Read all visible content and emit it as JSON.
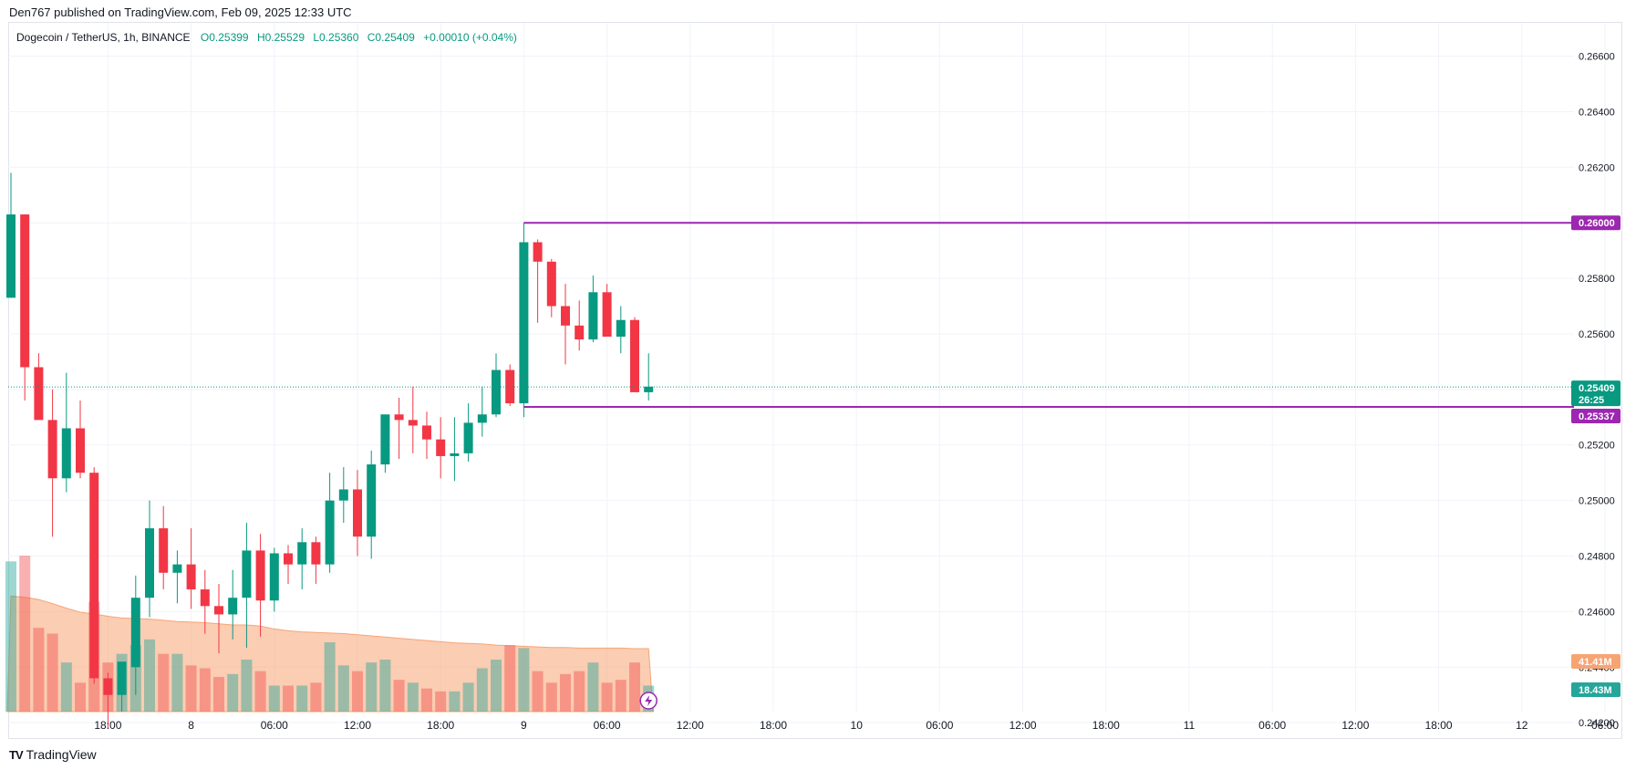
{
  "header": {
    "published": "Den767 published on TradingView.com, Feb 09, 2025 12:33 UTC"
  },
  "legend": {
    "symbol": "Dogecoin / TetherUS, 1h, BINANCE",
    "open": "O0.25399",
    "high": "H0.25529",
    "low": "L0.25360",
    "close": "C0.25409",
    "change": "+0.00010 (+0.04%)"
  },
  "footer": {
    "brand": "TradingView",
    "logo": "TV"
  },
  "colors": {
    "up": "#089981",
    "down": "#f23645",
    "level": "#9c27b0",
    "vol_ma": "#f7a475",
    "grid": "#f0f3fa",
    "axis_text": "#131722"
  },
  "chart_data": {
    "type": "candlestick",
    "title": "Dogecoin / TetherUS, 1h, BINANCE",
    "ylim": [
      0.2424,
      0.2672
    ],
    "y_ticks": [
      0.266,
      0.264,
      0.262,
      0.26,
      0.258,
      0.256,
      0.254,
      0.252,
      0.25,
      0.248,
      0.246,
      0.244,
      0.242
    ],
    "y_tick_labels": [
      "0.26600",
      "0.26400",
      "0.26200",
      "0.26000",
      "0.25800",
      "0.25600",
      "0.25400",
      "0.25200",
      "0.25000",
      "0.24800",
      "0.24600",
      "0.24400",
      "0.24200"
    ],
    "x_labels": [
      {
        "hour": 7,
        "label": "18:00"
      },
      {
        "hour": 13,
        "label": "8"
      },
      {
        "hour": 19,
        "label": "06:00"
      },
      {
        "hour": 25,
        "label": "12:00"
      },
      {
        "hour": 31,
        "label": "18:00"
      },
      {
        "hour": 37,
        "label": "9"
      },
      {
        "hour": 43,
        "label": "06:00"
      },
      {
        "hour": 49,
        "label": "12:00"
      },
      {
        "hour": 55,
        "label": "18:00"
      },
      {
        "hour": 61,
        "label": "10"
      },
      {
        "hour": 67,
        "label": "06:00"
      },
      {
        "hour": 73,
        "label": "12:00"
      },
      {
        "hour": 79,
        "label": "18:00"
      },
      {
        "hour": 85,
        "label": "11"
      },
      {
        "hour": 91,
        "label": "06:00"
      },
      {
        "hour": 97,
        "label": "12:00"
      },
      {
        "hour": 103,
        "label": "18:00"
      },
      {
        "hour": 109,
        "label": "12"
      },
      {
        "hour": 115,
        "label": "06:00"
      }
    ],
    "candles": [
      {
        "o": 0.2573,
        "h": 0.2618,
        "l": 0.2573,
        "c": 0.2603
      },
      {
        "o": 0.2603,
        "h": 0.2603,
        "l": 0.2536,
        "c": 0.2548
      },
      {
        "o": 0.2548,
        "h": 0.2553,
        "l": 0.2529,
        "c": 0.2529
      },
      {
        "o": 0.2529,
        "h": 0.254,
        "l": 0.2487,
        "c": 0.2508
      },
      {
        "o": 0.2508,
        "h": 0.2546,
        "l": 0.2503,
        "c": 0.2526
      },
      {
        "o": 0.2526,
        "h": 0.2536,
        "l": 0.2508,
        "c": 0.251
      },
      {
        "o": 0.251,
        "h": 0.2512,
        "l": 0.2434,
        "c": 0.2436
      },
      {
        "o": 0.2436,
        "h": 0.2438,
        "l": 0.2418,
        "c": 0.243
      },
      {
        "o": 0.243,
        "h": 0.244,
        "l": 0.2424,
        "c": 0.2442
      },
      {
        "o": 0.244,
        "h": 0.2473,
        "l": 0.243,
        "c": 0.2465
      },
      {
        "o": 0.2465,
        "h": 0.25,
        "l": 0.2458,
        "c": 0.249
      },
      {
        "o": 0.249,
        "h": 0.2498,
        "l": 0.2468,
        "c": 0.2474
      },
      {
        "o": 0.2474,
        "h": 0.2482,
        "l": 0.2463,
        "c": 0.2477
      },
      {
        "o": 0.2477,
        "h": 0.249,
        "l": 0.2461,
        "c": 0.2468
      },
      {
        "o": 0.2468,
        "h": 0.2475,
        "l": 0.2452,
        "c": 0.2462
      },
      {
        "o": 0.2462,
        "h": 0.247,
        "l": 0.2445,
        "c": 0.2459
      },
      {
        "o": 0.2459,
        "h": 0.2475,
        "l": 0.245,
        "c": 0.2465
      },
      {
        "o": 0.2465,
        "h": 0.2492,
        "l": 0.2447,
        "c": 0.2482
      },
      {
        "o": 0.2482,
        "h": 0.2488,
        "l": 0.2451,
        "c": 0.2464
      },
      {
        "o": 0.2464,
        "h": 0.2483,
        "l": 0.246,
        "c": 0.2481
      },
      {
        "o": 0.2481,
        "h": 0.2484,
        "l": 0.247,
        "c": 0.2477
      },
      {
        "o": 0.2477,
        "h": 0.249,
        "l": 0.2468,
        "c": 0.2485
      },
      {
        "o": 0.2485,
        "h": 0.2487,
        "l": 0.247,
        "c": 0.2477
      },
      {
        "o": 0.2477,
        "h": 0.251,
        "l": 0.2474,
        "c": 0.25
      },
      {
        "o": 0.25,
        "h": 0.2512,
        "l": 0.2492,
        "c": 0.2504
      },
      {
        "o": 0.2504,
        "h": 0.2511,
        "l": 0.248,
        "c": 0.2487
      },
      {
        "o": 0.2487,
        "h": 0.2518,
        "l": 0.2479,
        "c": 0.2513
      },
      {
        "o": 0.2513,
        "h": 0.253,
        "l": 0.251,
        "c": 0.2531
      },
      {
        "o": 0.2531,
        "h": 0.2537,
        "l": 0.2515,
        "c": 0.2529
      },
      {
        "o": 0.2529,
        "h": 0.2541,
        "l": 0.2517,
        "c": 0.2527
      },
      {
        "o": 0.2527,
        "h": 0.2532,
        "l": 0.2515,
        "c": 0.2522
      },
      {
        "o": 0.2522,
        "h": 0.253,
        "l": 0.2508,
        "c": 0.2516
      },
      {
        "o": 0.2516,
        "h": 0.253,
        "l": 0.2507,
        "c": 0.2517
      },
      {
        "o": 0.2517,
        "h": 0.2535,
        "l": 0.2514,
        "c": 0.2528
      },
      {
        "o": 0.2528,
        "h": 0.2541,
        "l": 0.2523,
        "c": 0.2531
      },
      {
        "o": 0.2531,
        "h": 0.2553,
        "l": 0.253,
        "c": 0.2547
      },
      {
        "o": 0.2547,
        "h": 0.2549,
        "l": 0.2534,
        "c": 0.2535
      },
      {
        "o": 0.2535,
        "h": 0.26,
        "l": 0.253,
        "c": 0.2593
      },
      {
        "o": 0.2593,
        "h": 0.2594,
        "l": 0.2564,
        "c": 0.2586
      },
      {
        "o": 0.2586,
        "h": 0.2587,
        "l": 0.2566,
        "c": 0.257
      },
      {
        "o": 0.257,
        "h": 0.2578,
        "l": 0.2549,
        "c": 0.2563
      },
      {
        "o": 0.2563,
        "h": 0.2572,
        "l": 0.2554,
        "c": 0.2558
      },
      {
        "o": 0.2558,
        "h": 0.2581,
        "l": 0.2557,
        "c": 0.2575
      },
      {
        "o": 0.2575,
        "h": 0.2578,
        "l": 0.2559,
        "c": 0.2559
      },
      {
        "o": 0.2559,
        "h": 0.257,
        "l": 0.2553,
        "c": 0.2565
      },
      {
        "o": 0.2565,
        "h": 0.2566,
        "l": 0.2539,
        "c": 0.2539
      },
      {
        "o": 0.2539,
        "h": 0.2553,
        "l": 0.2536,
        "c": 0.2541
      }
    ],
    "volume_scale_max": 30,
    "volumes": [
      {
        "v": 26,
        "up": true
      },
      {
        "v": 27,
        "up": false
      },
      {
        "v": 14.5,
        "up": false
      },
      {
        "v": 13.5,
        "up": false
      },
      {
        "v": 8.5,
        "up": true
      },
      {
        "v": 5,
        "up": false
      },
      {
        "v": 19,
        "up": false
      },
      {
        "v": 8.5,
        "up": false
      },
      {
        "v": 10,
        "up": true
      },
      {
        "v": 11.5,
        "up": true
      },
      {
        "v": 12.5,
        "up": true
      },
      {
        "v": 10,
        "up": false
      },
      {
        "v": 10,
        "up": true
      },
      {
        "v": 8,
        "up": false
      },
      {
        "v": 7.5,
        "up": false
      },
      {
        "v": 6,
        "up": false
      },
      {
        "v": 6.5,
        "up": true
      },
      {
        "v": 9,
        "up": true
      },
      {
        "v": 7,
        "up": false
      },
      {
        "v": 4.5,
        "up": true
      },
      {
        "v": 4.5,
        "up": false
      },
      {
        "v": 4.5,
        "up": true
      },
      {
        "v": 5,
        "up": false
      },
      {
        "v": 12,
        "up": true
      },
      {
        "v": 8,
        "up": true
      },
      {
        "v": 7,
        "up": false
      },
      {
        "v": 8.5,
        "up": true
      },
      {
        "v": 9,
        "up": true
      },
      {
        "v": 5.5,
        "up": false
      },
      {
        "v": 5,
        "up": true
      },
      {
        "v": 4,
        "up": false
      },
      {
        "v": 3.5,
        "up": false
      },
      {
        "v": 3.5,
        "up": true
      },
      {
        "v": 5,
        "up": true
      },
      {
        "v": 7.5,
        "up": true
      },
      {
        "v": 9,
        "up": true
      },
      {
        "v": 11.5,
        "up": false
      },
      {
        "v": 11,
        "up": true
      },
      {
        "v": 7,
        "up": false
      },
      {
        "v": 5,
        "up": false
      },
      {
        "v": 6.5,
        "up": false
      },
      {
        "v": 7,
        "up": false
      },
      {
        "v": 8.5,
        "up": true
      },
      {
        "v": 5,
        "up": false
      },
      {
        "v": 5.5,
        "up": false
      },
      {
        "v": 8.5,
        "up": false
      },
      {
        "v": 4.5,
        "up": true
      }
    ],
    "volume_ma": [
      20,
      19.8,
      19.4,
      18.7,
      17.9,
      17.2,
      16.9,
      16.5,
      16.2,
      16.1,
      16,
      15.8,
      15.6,
      15.5,
      15.4,
      15.2,
      15,
      15,
      14.8,
      14.3,
      14,
      13.8,
      13.7,
      13.6,
      13.5,
      13.3,
      13.1,
      12.9,
      12.7,
      12.5,
      12.3,
      12.1,
      11.9,
      11.8,
      11.7,
      11.5,
      11.4,
      11.3,
      11.2,
      11.1,
      11.1,
      11,
      11,
      11,
      11,
      10.9,
      10.9
    ],
    "levels": [
      {
        "value": 0.26,
        "label": "0.26000",
        "start_index": 37
      },
      {
        "value": 0.25337,
        "label": "0.25337",
        "start_index": 37
      }
    ],
    "last_price": {
      "value": 0.25409,
      "label": "0.25409",
      "countdown": "26:25"
    },
    "volume_tags": [
      {
        "label": "41.41M",
        "color": "#f7a475"
      },
      {
        "label": "18.43M",
        "color": "#26a69a"
      }
    ]
  }
}
